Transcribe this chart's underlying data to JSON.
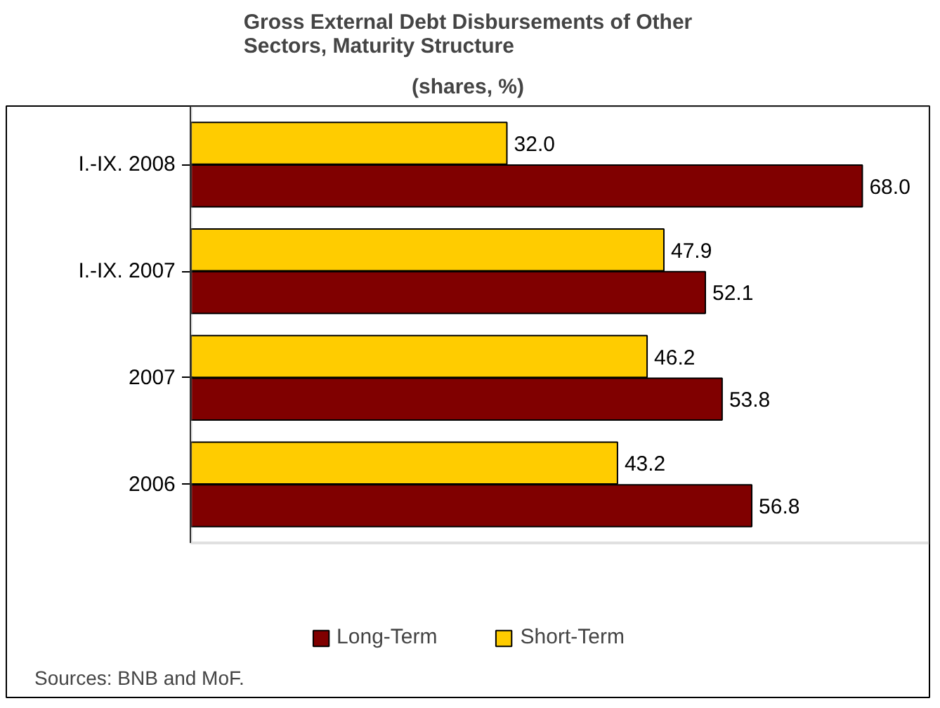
{
  "chart_data": {
    "type": "bar",
    "orientation": "horizontal",
    "title": "Gross External Debt Disbursements of Other Sectors, Maturity Structure",
    "subtitle": "(shares, %)",
    "categories": [
      "I.-IX. 2008",
      "I.-IX. 2007",
      "2007",
      "2006"
    ],
    "series": [
      {
        "name": "Long-Term",
        "color": "#800000",
        "values": [
          68.0,
          52.1,
          53.8,
          56.8
        ],
        "value_labels": [
          "68.0",
          "52.1",
          "53.8",
          "56.8"
        ]
      },
      {
        "name": "Short-Term",
        "color": "#ffcc00",
        "values": [
          32.0,
          47.9,
          46.2,
          43.2
        ],
        "value_labels": [
          "32.0",
          "47.9",
          "46.2",
          "43.2"
        ]
      }
    ],
    "legend": "bottom",
    "grid": false,
    "annotations": [
      "Sources: BNB and MoF."
    ]
  }
}
